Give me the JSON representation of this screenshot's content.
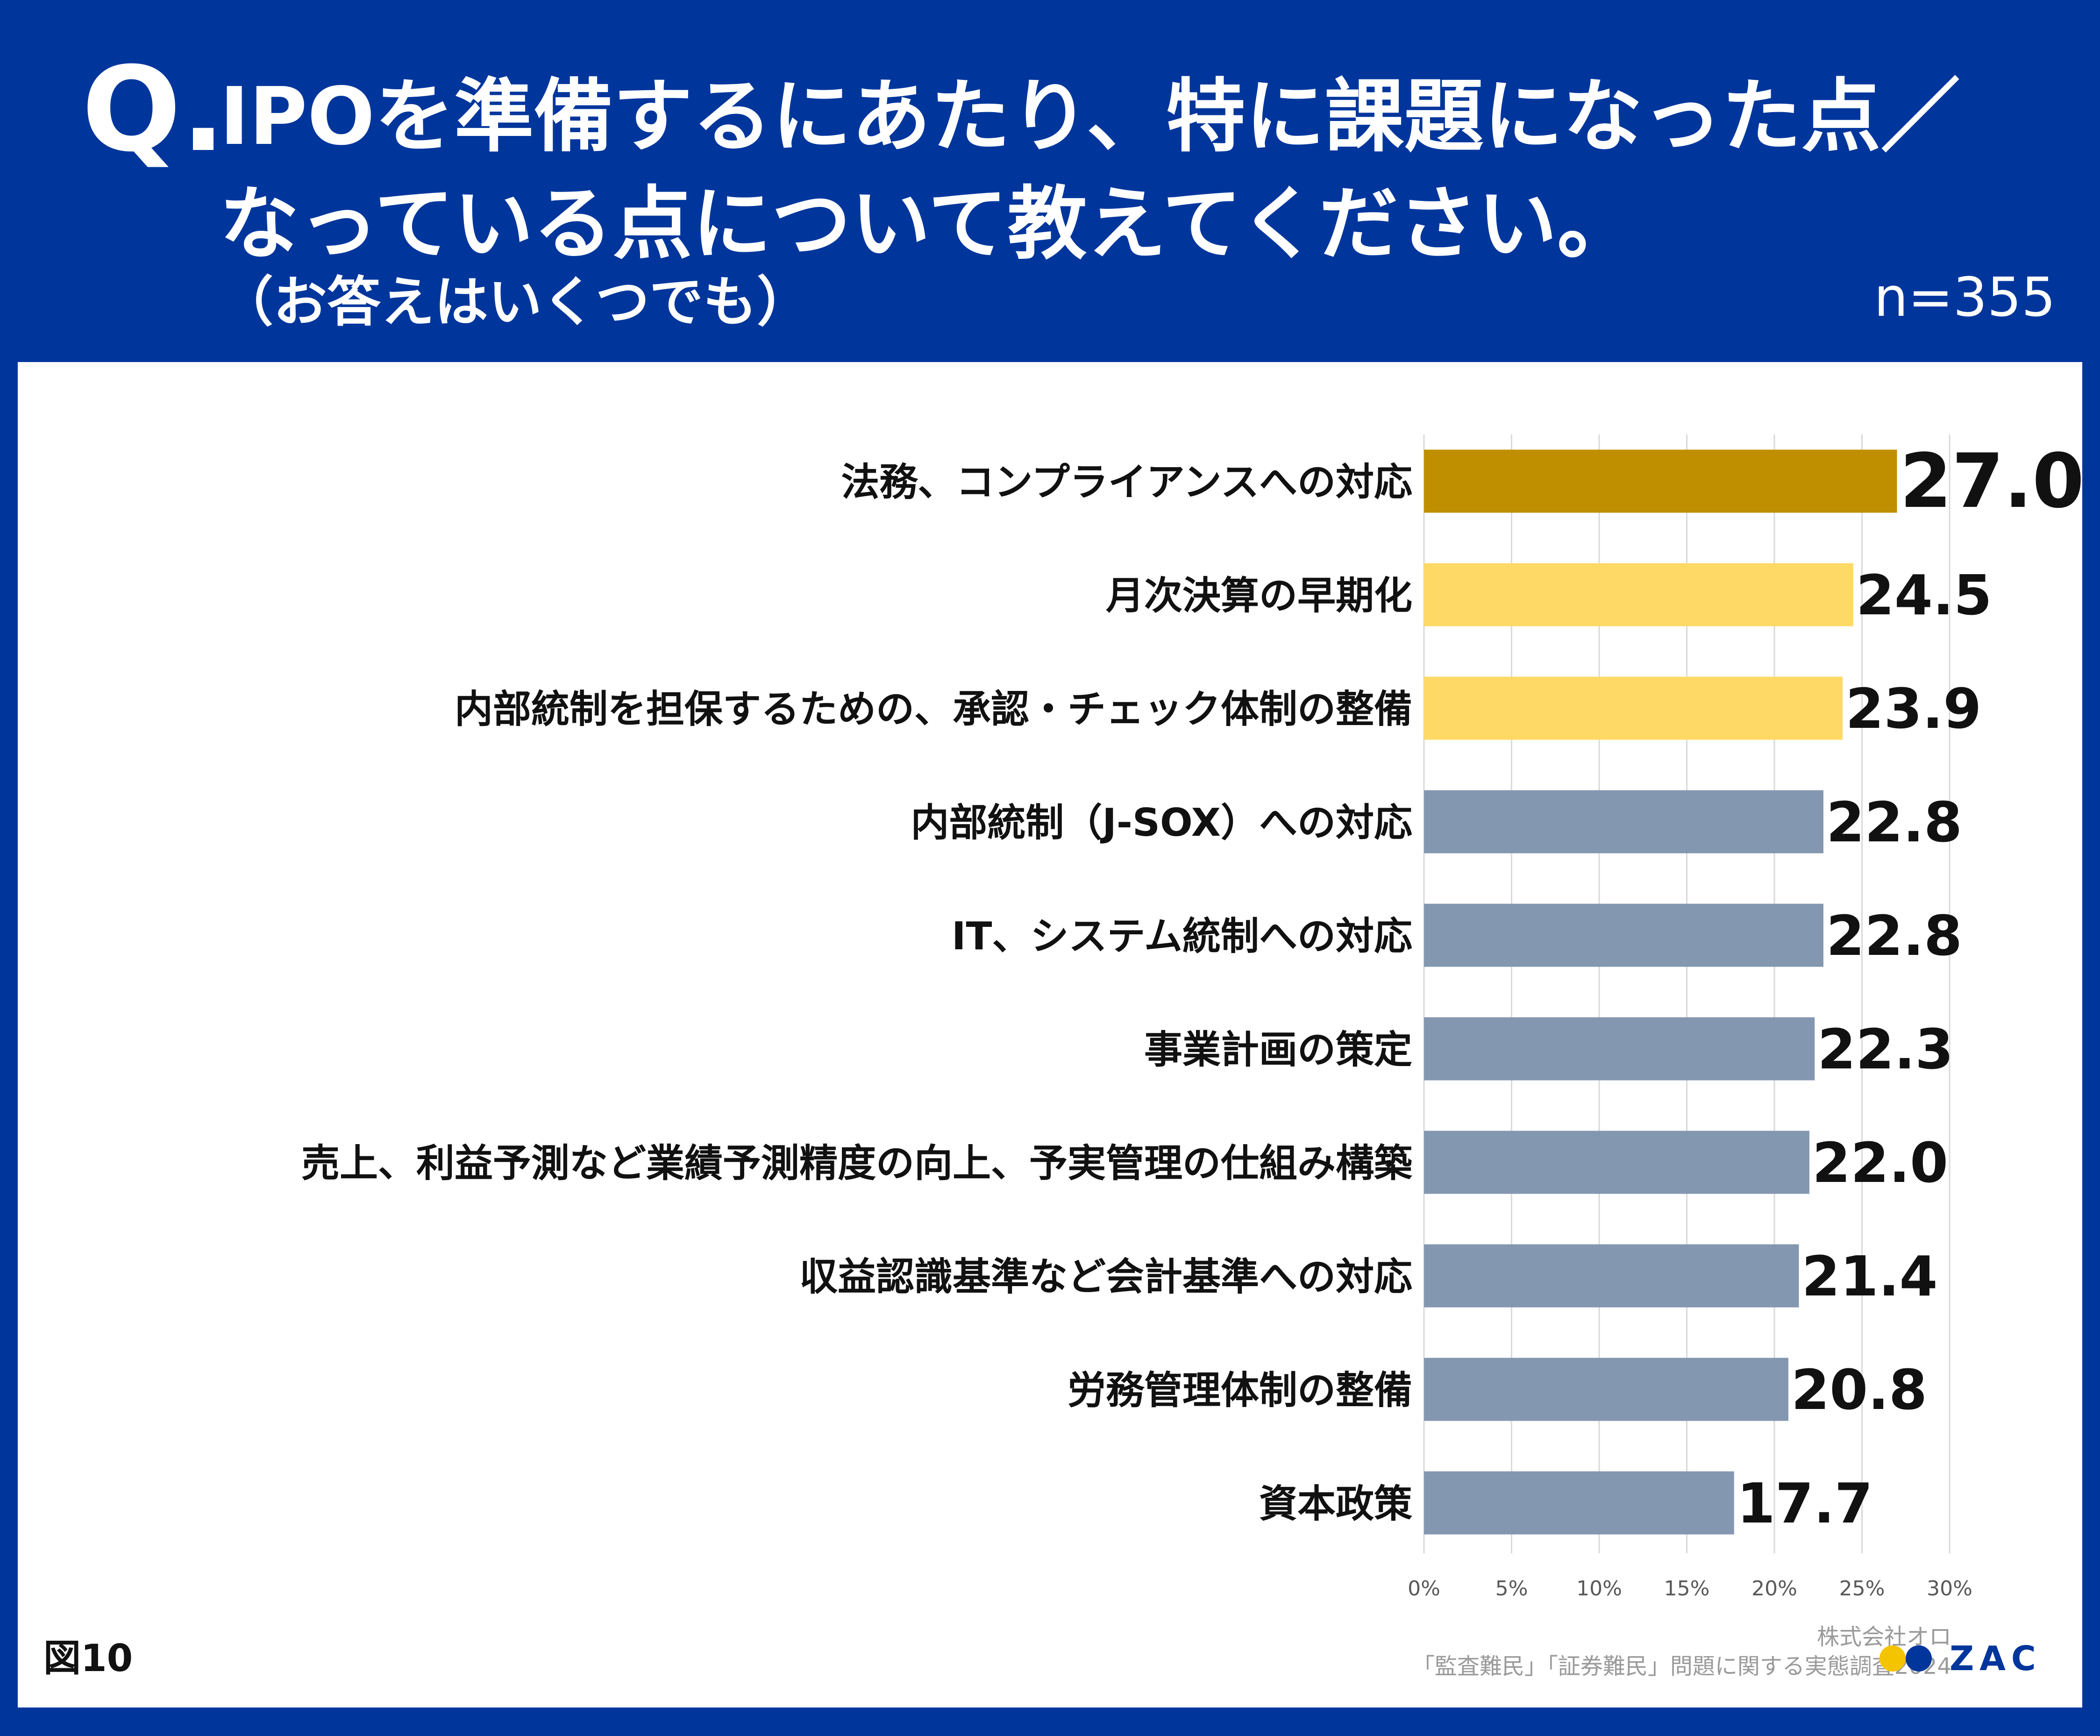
{
  "header": {
    "q_mark": "Q.",
    "question_line1": "IPOを準備するにあたり、特に課題になった点／",
    "question_line2": "なっている点について教えてください。",
    "question_sub": "（お答えはいくつでも）",
    "sample_size": "n=355"
  },
  "footer": {
    "figure_label": "図10",
    "company": "株式会社オロ",
    "survey": "「監査難民」「証券難民」問題に関する実態調査2024",
    "logo_text": "ZAC"
  },
  "colors": {
    "background": "#00369c",
    "panel": "#ffffff",
    "highlight_top": "#bf8f00",
    "highlight_second": "#ffd966",
    "default_bar": "#8497b0"
  },
  "chart_data": {
    "type": "bar",
    "orientation": "horizontal",
    "categories": [
      "法務、コンプライアンスへの対応",
      "月次決算の早期化",
      "内部統制を担保するための、承認・チェック体制の整備",
      "内部統制（J-SOX）への対応",
      "IT、システム統制への対応",
      "事業計画の策定",
      "売上、利益予測など業績予測精度の向上、予実管理の仕組み構築",
      "収益認識基準など会計基準への対応",
      "労務管理体制の整備",
      "資本政策"
    ],
    "values": [
      27.0,
      24.5,
      23.9,
      22.8,
      22.8,
      22.3,
      22.0,
      21.4,
      20.8,
      17.7
    ],
    "value_labels": [
      "27.0",
      "24.5",
      "23.9",
      "22.8",
      "22.8",
      "22.3",
      "22.0",
      "21.4",
      "20.8",
      "17.7"
    ],
    "bar_colors": [
      "#bf8f00",
      "#ffd966",
      "#ffd966",
      "#8497b0",
      "#8497b0",
      "#8497b0",
      "#8497b0",
      "#8497b0",
      "#8497b0",
      "#8497b0"
    ],
    "xlim": [
      0,
      30
    ],
    "xticks": [
      0,
      5,
      10,
      15,
      20,
      25,
      30
    ],
    "xtick_labels": [
      "0%",
      "5%",
      "10%",
      "15%",
      "20%",
      "25%",
      "30%"
    ],
    "grid": true
  }
}
